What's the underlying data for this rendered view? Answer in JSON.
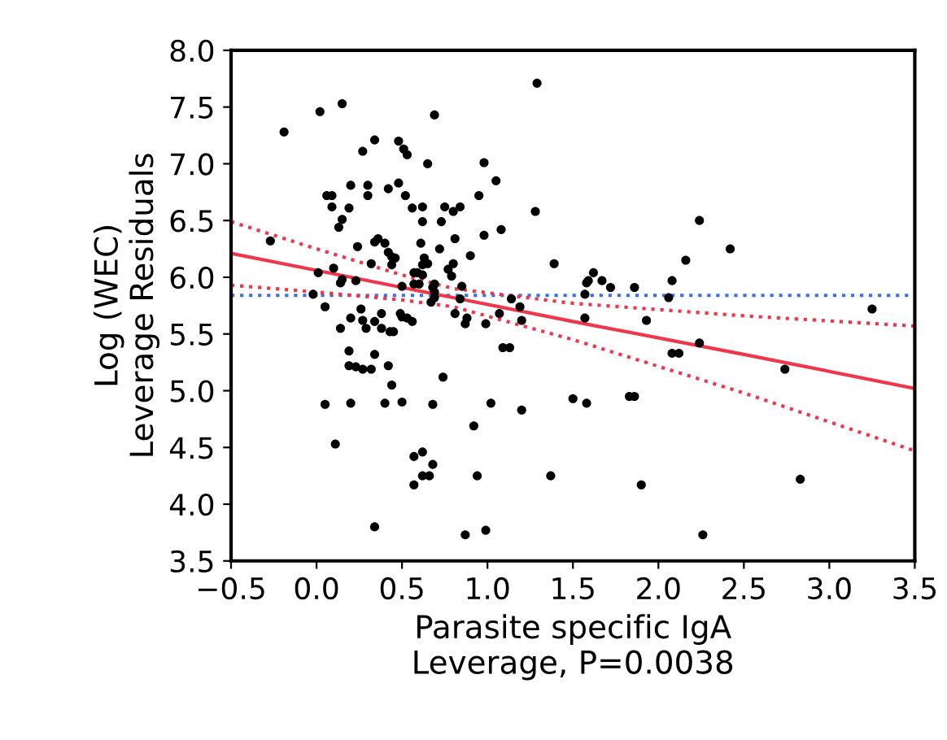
{
  "chart_data": {
    "type": "scatter",
    "xlabel": "Parasite specific IgA\nLeverage, P=0.0038",
    "ylabel": "Log (WEC)\nLeverage Residuals",
    "xlim": [
      -0.5,
      3.5
    ],
    "ylim": [
      3.5,
      8.0
    ],
    "xticks": [
      {
        "value": -0.5,
        "label": "−0.5"
      },
      {
        "value": 0,
        "label": "0.0"
      },
      {
        "value": 0.5,
        "label": "0.5"
      },
      {
        "value": 1,
        "label": "1.0"
      },
      {
        "value": 1.5,
        "label": "1.5"
      },
      {
        "value": 2,
        "label": "2.0"
      },
      {
        "value": 2.5,
        "label": "2.5"
      },
      {
        "value": 3,
        "label": "3.0"
      },
      {
        "value": 3.5,
        "label": "3.5"
      }
    ],
    "yticks": [
      {
        "value": 3.5,
        "label": "3.5"
      },
      {
        "value": 4,
        "label": "4.0"
      },
      {
        "value": 4.5,
        "label": "4.5"
      },
      {
        "value": 5,
        "label": "5.0"
      },
      {
        "value": 5.5,
        "label": "5.5"
      },
      {
        "value": 6,
        "label": "6.0"
      },
      {
        "value": 6.5,
        "label": "6.5"
      },
      {
        "value": 7,
        "label": "7.0"
      },
      {
        "value": 7.5,
        "label": "7.5"
      },
      {
        "value": 8,
        "label": "8.0"
      }
    ],
    "grid": false,
    "legend": false,
    "marker": "circle",
    "ref_lines": [
      {
        "axis": "y",
        "value": 5.84,
        "color": "#3a6ff0",
        "line_style": "dotted"
      }
    ],
    "series": [
      {
        "color": "#000000",
        "x": [
          -0.19,
          0.02,
          0.15,
          0.69,
          1.29,
          0.34,
          0.27,
          0.48,
          0.51,
          0.53,
          0.65,
          0.98,
          1.05,
          0.06,
          0.09,
          0.2,
          0.3,
          0.3,
          0.42,
          0.48,
          0.52,
          0.09,
          0.19,
          0.15,
          0.13,
          0.56,
          0.62,
          0.62,
          0.73,
          0.75,
          0.8,
          0.84,
          0.95,
          1.28,
          0.98,
          1.08,
          -0.27,
          0.24,
          0.34,
          0.36,
          0.4,
          0.42,
          0.44,
          0.46,
          0.44,
          0.32,
          0.61,
          0.72,
          0.81,
          0.9,
          0.63,
          0.65,
          0.62,
          0.8,
          0.77,
          0.79,
          0.01,
          0.1,
          0.15,
          0.14,
          0.23,
          0.57,
          0.59,
          0.62,
          0.5,
          0.57,
          0.6,
          0.69,
          0.68,
          0.69,
          0.85,
          -0.02,
          1.58,
          1.39,
          1.57,
          0.05,
          0.67,
          0.69,
          0.84,
          1.14,
          1.19,
          1.57,
          0.14,
          0.2,
          0.26,
          0.27,
          0.29,
          0.34,
          0.38,
          0.38,
          0.43,
          0.45,
          0.49,
          0.5,
          0.53,
          0.56,
          0.81,
          0.88,
          0.87,
          0.99,
          1.07,
          1.2,
          0.19,
          0.19,
          0.23,
          0.27,
          0.32,
          0.34,
          0.42,
          1.09,
          1.13,
          0.44,
          0.74,
          0.05,
          0.2,
          0.4,
          0.5,
          0.68,
          1.02,
          1.2,
          1.5,
          1.58,
          0.11,
          0.92,
          0.57,
          0.62,
          0.68,
          0.62,
          0.66,
          0.57,
          0.94,
          1.37,
          0.34,
          0.87,
          0.99,
          2.24,
          2.42,
          2.16,
          1.62,
          1.59,
          1.67,
          1.72,
          1.86,
          2.08,
          2.06,
          1.93,
          2.08,
          2.12,
          2.24,
          2.74,
          3.25,
          1.83,
          1.86,
          1.9,
          2.83,
          2.26
        ],
        "values": [
          7.28,
          7.46,
          7.53,
          7.43,
          7.71,
          7.21,
          7.11,
          7.2,
          7.13,
          7.08,
          7.0,
          7.01,
          6.85,
          6.72,
          6.72,
          6.81,
          6.81,
          6.72,
          6.78,
          6.83,
          6.72,
          6.62,
          6.61,
          6.51,
          6.44,
          6.61,
          6.62,
          6.49,
          6.49,
          6.62,
          6.58,
          6.62,
          6.72,
          6.58,
          6.37,
          6.42,
          6.32,
          6.27,
          6.31,
          6.34,
          6.3,
          6.22,
          6.18,
          6.17,
          6.11,
          6.12,
          6.3,
          6.25,
          6.34,
          6.19,
          6.17,
          6.12,
          6.11,
          6.12,
          6.07,
          6.01,
          6.04,
          6.08,
          5.98,
          5.95,
          5.97,
          6.04,
          6.04,
          6.02,
          5.92,
          5.94,
          5.94,
          5.94,
          5.91,
          5.87,
          5.92,
          5.85,
          5.95,
          6.12,
          5.85,
          5.74,
          5.78,
          5.82,
          5.81,
          5.81,
          5.74,
          5.64,
          5.55,
          5.64,
          5.72,
          5.62,
          5.55,
          5.61,
          5.68,
          5.55,
          5.52,
          5.52,
          5.68,
          5.65,
          5.64,
          5.61,
          5.68,
          5.64,
          5.59,
          5.59,
          5.68,
          5.62,
          5.35,
          5.22,
          5.21,
          5.19,
          5.19,
          5.32,
          5.22,
          5.38,
          5.38,
          5.05,
          5.12,
          4.88,
          4.89,
          4.89,
          4.9,
          4.88,
          4.89,
          4.83,
          4.93,
          4.89,
          4.53,
          4.69,
          4.42,
          4.46,
          4.35,
          4.25,
          4.25,
          4.17,
          4.25,
          4.25,
          3.8,
          3.73,
          3.77,
          6.5,
          6.25,
          6.15,
          6.04,
          5.97,
          5.97,
          5.91,
          5.91,
          5.97,
          5.82,
          5.62,
          5.33,
          5.33,
          5.42,
          5.19,
          5.72,
          4.95,
          4.95,
          4.17,
          4.22,
          3.73
        ]
      },
      {
        "type": "line",
        "color": "#f0364a",
        "line_style": "solid",
        "marker": "none",
        "x": [
          -0.5,
          0.0,
          0.5,
          0.8,
          1.5,
          2.5,
          3.5
        ],
        "values": [
          6.21,
          6.06,
          5.91,
          5.82,
          5.61,
          5.32,
          5.02
        ]
      },
      {
        "type": "line",
        "color": "#f0364a",
        "line_style": "dotted",
        "marker": "none",
        "x": [
          -0.5,
          0.0,
          0.5,
          0.8,
          1.5,
          2.5,
          3.5
        ],
        "values": [
          5.93,
          5.87,
          5.8,
          5.74,
          5.45,
          4.98,
          4.47
        ]
      },
      {
        "type": "line",
        "color": "#f0364a",
        "line_style": "dotted",
        "marker": "none",
        "x": [
          -0.5,
          0.0,
          0.5,
          0.8,
          1.5,
          2.5,
          3.5
        ],
        "values": [
          6.49,
          6.25,
          6.02,
          5.9,
          5.77,
          5.66,
          5.57
        ]
      }
    ]
  }
}
